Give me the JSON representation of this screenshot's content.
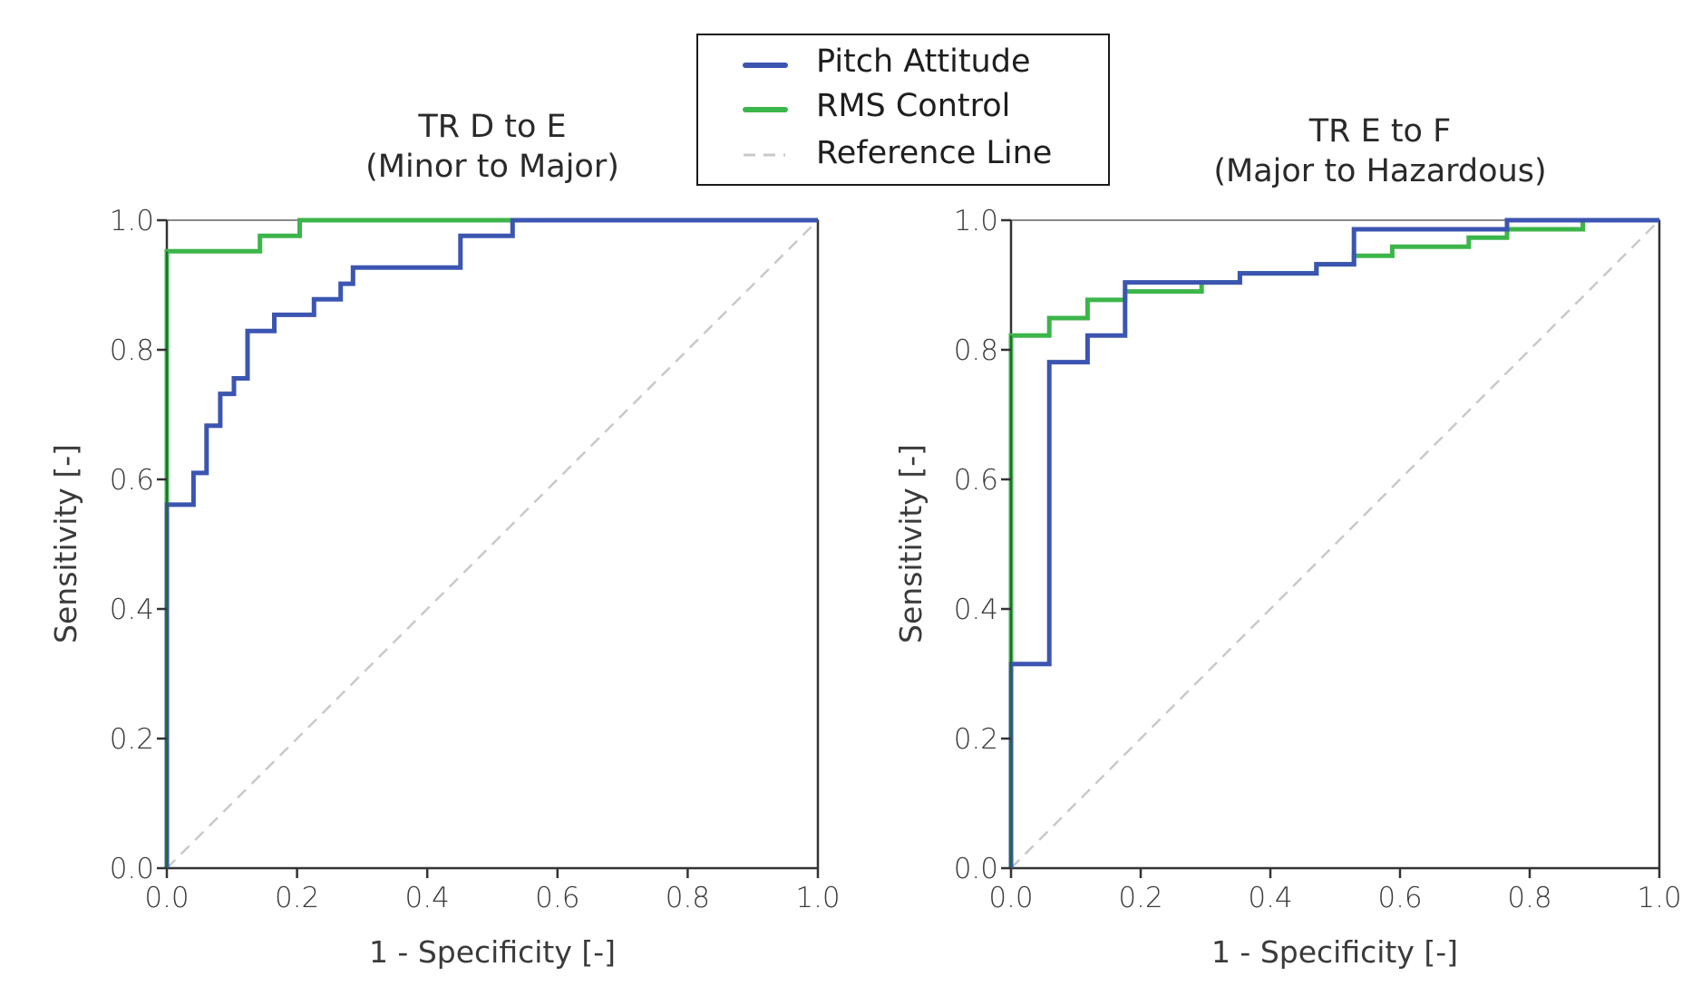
{
  "legend": {
    "entries": [
      {
        "label": "Pitch Attitude",
        "color": "#3b55b1",
        "style": "solid"
      },
      {
        "label": "RMS Control",
        "color": "#3cb54a",
        "style": "solid"
      },
      {
        "label": "Reference Line",
        "color": "#c9c9c9",
        "style": "dashed"
      }
    ]
  },
  "chart_data": [
    {
      "type": "line",
      "title": "TR D to E",
      "subtitle": "(Minor to Major)",
      "xlabel": "1 - Specificity [-]",
      "ylabel": "Sensitivity [-]",
      "xlim": [
        0,
        1
      ],
      "ylim": [
        0,
        1
      ],
      "xticks": [
        "0.0",
        "0.2",
        "0.4",
        "0.6",
        "0.8",
        "1.0"
      ],
      "yticks": [
        "0.0",
        "0.2",
        "0.4",
        "0.6",
        "0.8",
        "1.0"
      ],
      "grid": false,
      "series": [
        {
          "name": "Pitch Attitude",
          "step": true,
          "x": [
            0,
            0,
            0.041,
            0.041,
            0.061,
            0.061,
            0.082,
            0.082,
            0.103,
            0.103,
            0.124,
            0.124,
            0.165,
            0.165,
            0.226,
            0.226,
            0.267,
            0.267,
            0.286,
            0.286,
            0.451,
            0.451,
            0.531,
            0.531,
            1.0
          ],
          "y": [
            0,
            0.561,
            0.561,
            0.61,
            0.61,
            0.683,
            0.683,
            0.732,
            0.732,
            0.756,
            0.756,
            0.829,
            0.829,
            0.854,
            0.854,
            0.878,
            0.878,
            0.902,
            0.902,
            0.927,
            0.927,
            0.976,
            0.976,
            1.0,
            1.0
          ]
        },
        {
          "name": "RMS Control",
          "step": true,
          "x": [
            0,
            0,
            0.143,
            0.143,
            0.204,
            0.204,
            1.0
          ],
          "y": [
            0,
            0.952,
            0.952,
            0.976,
            0.976,
            1.0,
            1.0
          ]
        },
        {
          "name": "Reference Line",
          "x": [
            0,
            1
          ],
          "y": [
            0,
            1
          ]
        }
      ]
    },
    {
      "type": "line",
      "title": "TR E to F",
      "subtitle": "(Major to Hazardous)",
      "xlabel": "1 - Specificity [-]",
      "ylabel": "Sensitivity [-]",
      "xlim": [
        0,
        1
      ],
      "ylim": [
        0,
        1
      ],
      "xticks": [
        "0.0",
        "0.2",
        "0.4",
        "0.6",
        "0.8",
        "1.0"
      ],
      "yticks": [
        "0.0",
        "0.2",
        "0.4",
        "0.6",
        "0.8",
        "1.0"
      ],
      "grid": false,
      "series": [
        {
          "name": "Pitch Attitude",
          "step": true,
          "x": [
            0,
            0,
            0.059,
            0.059,
            0.118,
            0.118,
            0.176,
            0.176,
            0.294,
            0.294,
            0.353,
            0.353,
            0.471,
            0.471,
            0.529,
            0.529,
            0.765,
            0.765,
            1.0
          ],
          "y": [
            0,
            0.315,
            0.315,
            0.781,
            0.781,
            0.822,
            0.822,
            0.904,
            0.904,
            0.904,
            0.904,
            0.918,
            0.918,
            0.932,
            0.932,
            0.986,
            0.986,
            1.0,
            1.0
          ]
        },
        {
          "name": "RMS Control",
          "step": true,
          "x": [
            0,
            0,
            0.059,
            0.059,
            0.118,
            0.118,
            0.176,
            0.176,
            0.294,
            0.294,
            0.353,
            0.353,
            0.471,
            0.471,
            0.529,
            0.529,
            0.588,
            0.588,
            0.706,
            0.706,
            0.765,
            0.765,
            0.882,
            0.882,
            1.0
          ],
          "y": [
            0,
            0.822,
            0.822,
            0.849,
            0.849,
            0.877,
            0.877,
            0.89,
            0.89,
            0.904,
            0.904,
            0.918,
            0.918,
            0.932,
            0.932,
            0.945,
            0.945,
            0.959,
            0.959,
            0.973,
            0.973,
            0.986,
            0.986,
            1.0,
            1.0
          ]
        },
        {
          "name": "Reference Line",
          "x": [
            0,
            1
          ],
          "y": [
            0,
            1
          ]
        }
      ]
    }
  ]
}
